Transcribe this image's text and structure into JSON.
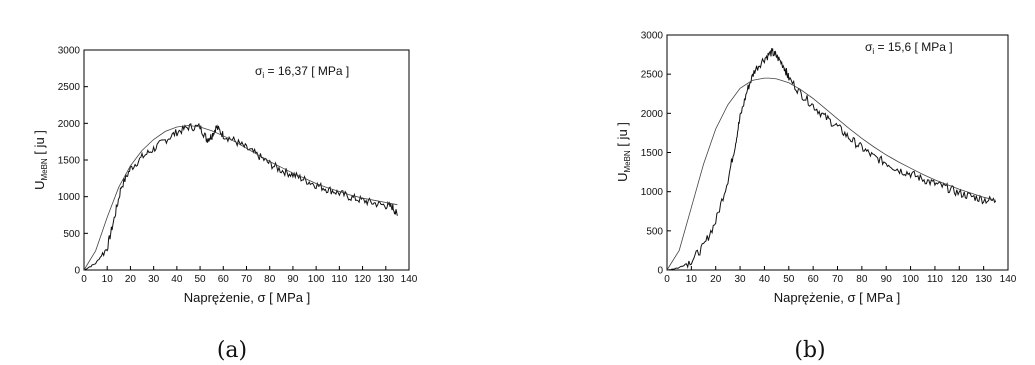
{
  "chart_data": [
    {
      "id": "a",
      "type": "line",
      "caption": "(a)",
      "xlabel": "Naprężenie, σ [ MPa ]",
      "ylabel": {
        "main": "U",
        "sub": "MeBN",
        "unit": " [ ju ]"
      },
      "annotation": {
        "main": "σ",
        "sub": "i",
        "rest": " = 16,37 [ MPa ]"
      },
      "xlim": [
        0,
        140
      ],
      "ylim": [
        0,
        3000
      ],
      "xticks": [
        "0",
        "10",
        "20",
        "30",
        "40",
        "50",
        "60",
        "70",
        "80",
        "90",
        "100",
        "110",
        "120",
        "130",
        "140"
      ],
      "yticks": [
        "0",
        "500",
        "1000",
        "1500",
        "2000",
        "2500",
        "3000"
      ],
      "grid": false,
      "series": [
        {
          "style": "noisy-measured",
          "x": [
            0,
            5,
            10,
            13,
            16,
            20,
            25,
            30,
            35,
            40,
            45,
            50,
            53,
            55,
            57,
            60,
            65,
            70,
            75,
            80,
            85,
            90,
            95,
            100,
            105,
            110,
            115,
            120,
            125,
            130,
            133,
            135
          ],
          "y": [
            0,
            90,
            300,
            700,
            1130,
            1380,
            1540,
            1650,
            1770,
            1880,
            1950,
            1950,
            1780,
            1830,
            1950,
            1840,
            1760,
            1660,
            1560,
            1450,
            1360,
            1300,
            1230,
            1160,
            1100,
            1050,
            990,
            950,
            910,
            880,
            860,
            740
          ]
        },
        {
          "style": "fit",
          "x": [
            0,
            5,
            10,
            15,
            20,
            25,
            30,
            35,
            40,
            45,
            50,
            55,
            60,
            65,
            70,
            75,
            80,
            85,
            90,
            95,
            100,
            105,
            110,
            115,
            120,
            125,
            130,
            135
          ],
          "y": [
            0,
            260,
            720,
            1130,
            1420,
            1630,
            1780,
            1890,
            1950,
            1970,
            1950,
            1900,
            1830,
            1750,
            1660,
            1570,
            1480,
            1400,
            1320,
            1250,
            1180,
            1120,
            1070,
            1020,
            980,
            950,
            920,
            890
          ]
        }
      ]
    },
    {
      "id": "b",
      "type": "line",
      "caption": "(b)",
      "xlabel": "Naprężenie, σ [ MPa ]",
      "ylabel": {
        "main": "U",
        "sub": "MeBN",
        "unit": " [ ju ]"
      },
      "annotation": {
        "main": "σ",
        "sub": "i",
        "rest": " = 15,6 [ MPa ]"
      },
      "xlim": [
        0,
        140
      ],
      "ylim": [
        0,
        3000
      ],
      "xticks": [
        "0",
        "10",
        "20",
        "30",
        "40",
        "50",
        "60",
        "70",
        "80",
        "90",
        "100",
        "110",
        "120",
        "130",
        "140"
      ],
      "yticks": [
        "0",
        "500",
        "1000",
        "1500",
        "2000",
        "2500",
        "3000"
      ],
      "grid": false,
      "series": [
        {
          "style": "noisy-measured",
          "x": [
            0,
            5,
            10,
            15,
            20,
            25,
            28,
            30,
            33,
            36,
            40,
            43,
            45,
            48,
            50,
            55,
            60,
            65,
            70,
            75,
            80,
            85,
            90,
            95,
            100,
            105,
            110,
            115,
            120,
            125,
            130,
            135
          ],
          "y": [
            0,
            30,
            120,
            300,
            620,
            1150,
            1600,
            1950,
            2300,
            2550,
            2700,
            2780,
            2730,
            2600,
            2450,
            2250,
            2100,
            1950,
            1830,
            1680,
            1560,
            1440,
            1370,
            1280,
            1230,
            1160,
            1100,
            1050,
            980,
            940,
            900,
            880
          ]
        },
        {
          "style": "fit",
          "x": [
            0,
            5,
            10,
            15,
            20,
            25,
            30,
            35,
            40,
            42,
            45,
            50,
            55,
            60,
            65,
            70,
            75,
            80,
            85,
            90,
            95,
            100,
            105,
            110,
            115,
            120,
            125,
            130,
            135
          ],
          "y": [
            0,
            250,
            800,
            1350,
            1800,
            2110,
            2320,
            2420,
            2450,
            2450,
            2440,
            2390,
            2300,
            2190,
            2060,
            1930,
            1800,
            1680,
            1570,
            1470,
            1380,
            1300,
            1220,
            1150,
            1090,
            1030,
            980,
            930,
            890
          ]
        }
      ]
    }
  ]
}
